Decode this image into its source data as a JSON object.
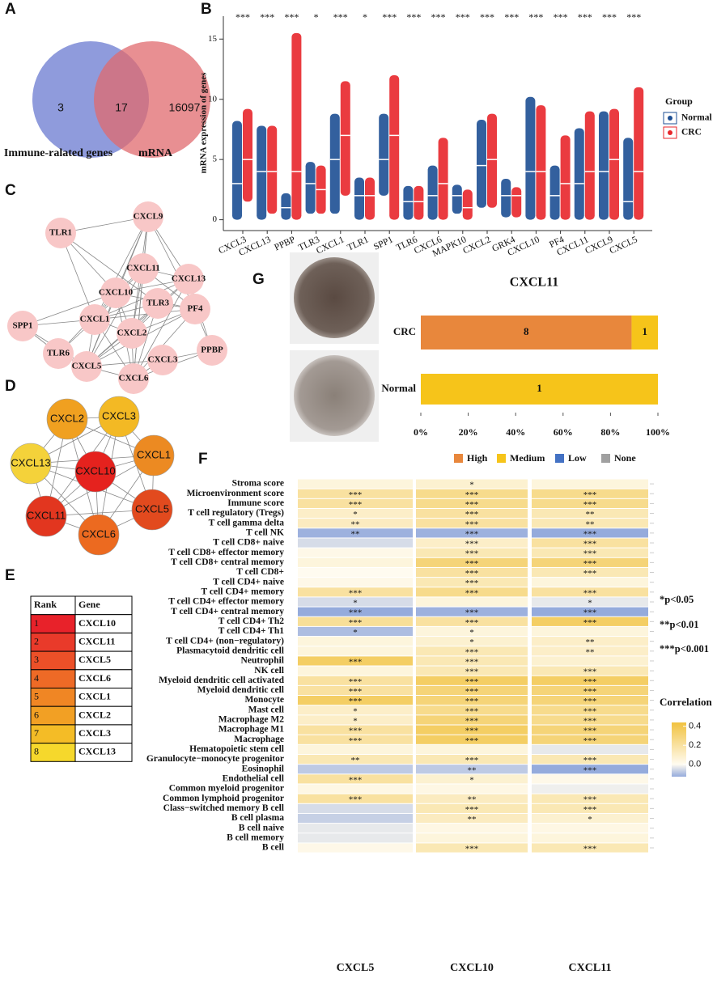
{
  "panel_labels": [
    "A",
    "B",
    "C",
    "D",
    "E",
    "F",
    "G"
  ],
  "venn": {
    "sets": [
      {
        "name": "Immune-ralated genes",
        "color": "#7b89d6"
      },
      {
        "name": "mRNA",
        "color": "#e0696e"
      }
    ],
    "only_first": 3,
    "both": 17,
    "only_second": 16097
  },
  "expression_chart": {
    "type": "strip",
    "ylabel": "mRNA expression of genes",
    "categories": [
      "CXCL3",
      "CXCL13",
      "PPBP",
      "TLR3",
      "CXCL1",
      "TLR1",
      "SPP1",
      "TLR6",
      "CXCL6",
      "MAPK10",
      "CXCL2",
      "GRK4",
      "CXCL10",
      "PF4",
      "CXCL11",
      "CXCL9",
      "CXCL5"
    ],
    "category_colors": [
      "#d2322d",
      "#111111",
      "#d2322d",
      "#111111",
      "#d2322d",
      "#111111",
      "#d2322d",
      "#111111",
      "#d2322d",
      "#111111",
      "#111111",
      "#111111",
      "#d2322d",
      "#d2322d",
      "#d2322d",
      "#d2322d",
      "#d2322d"
    ],
    "significance": [
      "***",
      "***",
      "***",
      "*",
      "***",
      "*",
      "***",
      "***",
      "***",
      "***",
      "***",
      "***",
      "***",
      "***",
      "***",
      "***",
      "***"
    ],
    "legend_title": "Group",
    "series": [
      {
        "name": "Normal",
        "color": "#1d4f94",
        "min": [
          0,
          0,
          0,
          0.5,
          0.5,
          0,
          2,
          0,
          0,
          0.5,
          1,
          0.2,
          0,
          0,
          0,
          0,
          0
        ],
        "median": [
          3,
          4,
          1,
          3,
          5,
          2,
          5,
          1.5,
          2,
          2,
          4.5,
          2,
          4,
          2,
          3,
          4,
          1.5
        ],
        "max": [
          8.2,
          7.8,
          2.2,
          4.8,
          8.8,
          3.5,
          8.8,
          2.8,
          4.5,
          2.9,
          8.3,
          3.4,
          10.2,
          4.5,
          7.6,
          9,
          6.8
        ]
      },
      {
        "name": "CRC",
        "color": "#e8262b",
        "min": [
          1.5,
          0.5,
          0,
          0.5,
          2,
          0,
          0,
          0,
          0,
          0,
          1,
          0.2,
          0,
          0,
          0,
          0,
          0
        ],
        "median": [
          5,
          4,
          4,
          2.5,
          7,
          2,
          7,
          1.5,
          3,
          1,
          5,
          2,
          4,
          3,
          4,
          5,
          4
        ],
        "max": [
          9.2,
          7.8,
          15.5,
          4.5,
          11.5,
          3.5,
          12,
          2.8,
          6.8,
          2.5,
          8.8,
          2.7,
          9.5,
          7,
          9,
          9.2,
          11
        ]
      }
    ],
    "ylim": [
      -0.9,
      16.9
    ],
    "yticks": [
      0,
      5,
      10,
      15
    ]
  },
  "network": {
    "nodes": [
      "CXCL9",
      "TLR1",
      "CXCL11",
      "CXCL13",
      "CXCL10",
      "TLR3",
      "PF4",
      "SPP1",
      "CXCL1",
      "CXCL2",
      "CXCL3",
      "PPBP",
      "TLR6",
      "CXCL5",
      "CXCL6"
    ],
    "color": "#f8c7c7"
  },
  "hub_network": {
    "nodes": [
      {
        "label": "CXCL2",
        "color": "#f0a020"
      },
      {
        "label": "CXCL3",
        "color": "#f3b924"
      },
      {
        "label": "CXCL1",
        "color": "#ec8a22"
      },
      {
        "label": "CXCL13",
        "color": "#f4d23a"
      },
      {
        "label": "CXCL10",
        "color": "#e5221e"
      },
      {
        "label": "CXCL5",
        "color": "#e24a1e"
      },
      {
        "label": "CXCL11",
        "color": "#e2361f"
      },
      {
        "label": "CXCL6",
        "color": "#ec6a20"
      }
    ]
  },
  "rank_table": {
    "header": [
      "Rank",
      "Gene"
    ],
    "rows": [
      {
        "rank": 1,
        "gene": "CXCL10",
        "color": "#e8222a"
      },
      {
        "rank": 2,
        "gene": "CXCL11",
        "color": "#e93a2a"
      },
      {
        "rank": 3,
        "gene": "CXCL5",
        "color": "#ec5028"
      },
      {
        "rank": 4,
        "gene": "CXCL6",
        "color": "#ee6a26"
      },
      {
        "rank": 5,
        "gene": "CXCL1",
        "color": "#f08624"
      },
      {
        "rank": 6,
        "gene": "CXCL2",
        "color": "#f2a024"
      },
      {
        "rank": 7,
        "gene": "CXCL3",
        "color": "#f4bc26"
      },
      {
        "rank": 8,
        "gene": "CXCL13",
        "color": "#f6d82c"
      }
    ]
  },
  "ihc_chart": {
    "type": "bar",
    "title": "CXCL11",
    "categories": [
      "CRC",
      "Normal"
    ],
    "series": [
      {
        "name": "High",
        "color": "#e8873c",
        "values": [
          8,
          0
        ]
      },
      {
        "name": "Medium",
        "color": "#f6c41a",
        "values": [
          1,
          1
        ]
      },
      {
        "name": "Low",
        "color": "#4472c4",
        "values": [
          0,
          0
        ]
      },
      {
        "name": "None",
        "color": "#a0a0a0",
        "values": [
          0,
          0
        ]
      }
    ],
    "xlim": [
      0,
      100
    ],
    "xticks": [
      {
        "value": 0,
        "label": "0%"
      },
      {
        "value": 20,
        "label": "20%"
      },
      {
        "value": 40,
        "label": "40%"
      },
      {
        "value": 60,
        "label": "60%"
      },
      {
        "value": 80,
        "label": "80%"
      },
      {
        "value": 100,
        "label": "100%"
      }
    ]
  },
  "correlation_heatmap": {
    "type": "heatmap",
    "columns": [
      "CXCL5",
      "CXCL10",
      "CXCL11"
    ],
    "rows": [
      "Stroma score",
      "Microenvironment score",
      "Immune score",
      "T cell regulatory (Tregs)",
      "T cell gamma delta",
      "T cell NK",
      "T cell CD8+ naive",
      "T cell CD8+ effector memory",
      "T cell CD8+ central memory",
      "T cell CD8+",
      "T cell CD4+ naive",
      "T cell CD4+ memory",
      "T cell CD4+ effector memory",
      "T cell CD4+ central memory",
      "T cell CD4+ Th2",
      "T cell CD4+ Th1",
      "T cell CD4+ (non−regulatory)",
      "Plasmacytoid dendritic cell",
      "Neutrophil",
      "NK cell",
      "Myeloid dendritic cell activated",
      "Myeloid dendritic cell",
      "Monocyte",
      "Mast cell",
      "Macrophage M2",
      "Macrophage M1",
      "Macrophage",
      "Hematopoietic stem cell",
      "Granulocyte−monocyte progenitor",
      "Eosinophil",
      "Endothelial cell",
      "Common myeloid progenitor",
      "Common lymphoid progenitor",
      "Class−switched memory B cell",
      "B cell plasma",
      "B cell naive",
      "B cell memory",
      "B cell"
    ],
    "values": [
      [
        0.05,
        0.08,
        0.05
      ],
      [
        0.2,
        0.25,
        0.25
      ],
      [
        0.2,
        0.25,
        0.25
      ],
      [
        0.1,
        0.2,
        0.15
      ],
      [
        0.12,
        0.2,
        0.15
      ],
      [
        -0.12,
        -0.12,
        -0.15
      ],
      [
        -0.05,
        0.1,
        0.2
      ],
      [
        0.02,
        0.15,
        0.15
      ],
      [
        0.05,
        0.3,
        0.3
      ],
      [
        0,
        0.2,
        0.15
      ],
      [
        0.02,
        0.15,
        0.05
      ],
      [
        0.2,
        0.25,
        0.2
      ],
      [
        -0.05,
        0.05,
        -0.03
      ],
      [
        -0.18,
        -0.12,
        -0.18
      ],
      [
        0.22,
        0.2,
        0.35
      ],
      [
        -0.1,
        0.05,
        0.05
      ],
      [
        0.05,
        0.08,
        0.1
      ],
      [
        0.05,
        0.15,
        0.1
      ],
      [
        0.35,
        0.15,
        0.08
      ],
      [
        0.05,
        0.15,
        0.15
      ],
      [
        0.2,
        0.35,
        0.35
      ],
      [
        0.2,
        0.3,
        0.3
      ],
      [
        0.35,
        0.3,
        0.3
      ],
      [
        0.1,
        0.25,
        0.25
      ],
      [
        0.1,
        0.3,
        0.25
      ],
      [
        0.2,
        0.35,
        0.3
      ],
      [
        0.2,
        0.35,
        0.3
      ],
      [
        0.05,
        0.05,
        -0.03
      ],
      [
        0.15,
        0.15,
        0.15
      ],
      [
        -0.08,
        -0.08,
        -0.2
      ],
      [
        0.2,
        0.08,
        0.02
      ],
      [
        0.03,
        0.03,
        -0.02
      ],
      [
        0.2,
        0.12,
        0.15
      ],
      [
        -0.05,
        0.15,
        0.15
      ],
      [
        -0.07,
        0.12,
        0.08
      ],
      [
        -0.03,
        0.03,
        0.03
      ],
      [
        -0.03,
        0.05,
        0.05
      ],
      [
        0.02,
        0.15,
        0.15
      ]
    ],
    "stars": [
      [
        null,
        "*",
        null
      ],
      [
        "***",
        "***",
        "***"
      ],
      [
        "***",
        "***",
        "***"
      ],
      [
        "*",
        "***",
        "**"
      ],
      [
        "**",
        "***",
        "**"
      ],
      [
        "**",
        "***",
        "***"
      ],
      [
        null,
        "***",
        "***"
      ],
      [
        null,
        "***",
        "***"
      ],
      [
        null,
        "***",
        "***"
      ],
      [
        null,
        "***",
        "***"
      ],
      [
        null,
        "***",
        null
      ],
      [
        "***",
        "***",
        "***"
      ],
      [
        "*",
        null,
        "*"
      ],
      [
        "***",
        "***",
        "***"
      ],
      [
        "***",
        "***",
        "***"
      ],
      [
        "*",
        "*",
        null
      ],
      [
        null,
        "*",
        "**"
      ],
      [
        null,
        "***",
        "**"
      ],
      [
        "***",
        "***",
        null
      ],
      [
        null,
        "***",
        "***"
      ],
      [
        "***",
        "***",
        "***"
      ],
      [
        "***",
        "***",
        "***"
      ],
      [
        "***",
        "***",
        "***"
      ],
      [
        "*",
        "***",
        "***"
      ],
      [
        "*",
        "***",
        "***"
      ],
      [
        "***",
        "***",
        "***"
      ],
      [
        "***",
        "***",
        "***"
      ],
      [
        null,
        null,
        null
      ],
      [
        "**",
        "***",
        "***"
      ],
      [
        null,
        "**",
        "***"
      ],
      [
        "***",
        "*",
        null
      ],
      [
        null,
        null,
        null
      ],
      [
        "***",
        "**",
        "***"
      ],
      [
        null,
        "***",
        "***"
      ],
      [
        null,
        "**",
        "*"
      ],
      [
        null,
        null,
        null
      ],
      [
        null,
        null,
        null
      ],
      [
        null,
        "***",
        "***"
      ]
    ],
    "legend_title": "Correlation",
    "clim": [
      -0.13,
      0.44
    ],
    "colors": [
      "#95abdc",
      "#fffbf0",
      "#f1c240"
    ],
    "colorbar_ticks": [
      {
        "value": 0,
        "label": "0.0"
      },
      {
        "value": 0.2,
        "label": "0.2"
      },
      {
        "value": 0.4,
        "label": "0.4"
      }
    ],
    "annotations": [
      "*p<0.05",
      "**p<0.01",
      "***p<0.001"
    ]
  }
}
